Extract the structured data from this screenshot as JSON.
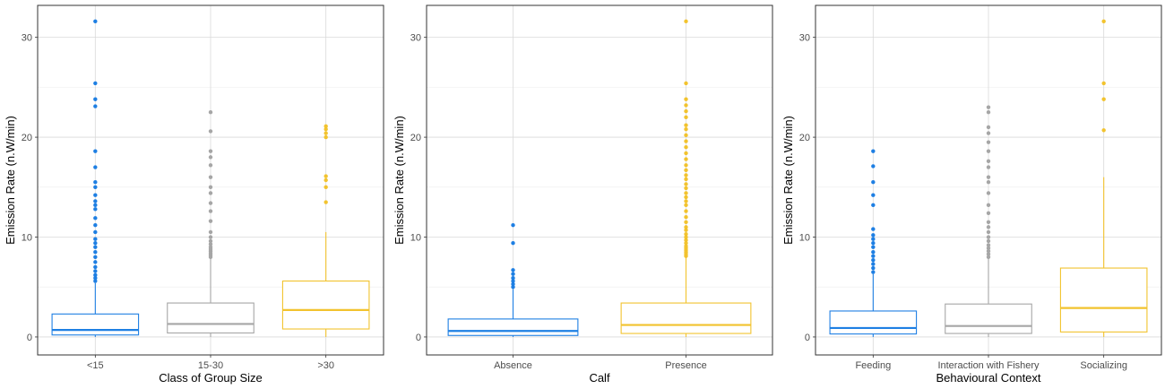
{
  "chart_data": [
    {
      "type": "box",
      "ylabel": "Emission Rate (n.W/min)",
      "xlabel": "Class of Group Size",
      "ylim": [
        -1.8,
        33.2
      ],
      "y_ticks": [
        0,
        10,
        20,
        30
      ],
      "grid": true,
      "legend": "none",
      "categories": [
        {
          "label": "<15",
          "color": "#1e7fe3",
          "q1": 0.2,
          "median": 0.7,
          "q3": 2.3,
          "whisker_low": 0,
          "whisker_high": 5.4,
          "outliers": [
            5.6,
            5.9,
            6.2,
            6.6,
            7.0,
            7.5,
            8.0,
            8.5,
            9.0,
            9.4,
            9.8,
            10.5,
            11.2,
            11.9,
            12.8,
            13.2,
            13.6,
            14.2,
            15.0,
            15.5,
            17.0,
            18.6,
            23.1,
            23.8,
            25.4,
            31.6
          ]
        },
        {
          "label": "15-30",
          "color": "#a6a6a6",
          "q1": 0.4,
          "median": 1.3,
          "q3": 3.4,
          "whisker_low": 0,
          "whisker_high": 7.8,
          "outliers": [
            8.0,
            8.2,
            8.4,
            8.6,
            8.8,
            9.0,
            9.3,
            9.6,
            10.0,
            10.5,
            11.6,
            12.6,
            13.4,
            14.4,
            15.0,
            16.0,
            17.2,
            18.0,
            18.6,
            20.6,
            22.5
          ]
        },
        {
          "label": ">30",
          "color": "#f2c32e",
          "q1": 0.8,
          "median": 2.7,
          "q3": 5.6,
          "whisker_low": 0,
          "whisker_high": 10.5,
          "outliers": [
            13.5,
            15.0,
            15.7,
            16.1,
            20.0,
            20.4,
            20.8,
            21.1
          ]
        }
      ]
    },
    {
      "type": "box",
      "ylabel": "Emission Rate (n.W/min)",
      "xlabel": "Calf",
      "ylim": [
        -1.8,
        33.2
      ],
      "y_ticks": [
        0,
        10,
        20,
        30
      ],
      "grid": true,
      "legend": "none",
      "categories": [
        {
          "label": "Absence",
          "color": "#1e7fe3",
          "q1": 0.15,
          "median": 0.6,
          "q3": 1.8,
          "whisker_low": 0,
          "whisker_high": 4.8,
          "outliers": [
            5.0,
            5.3,
            5.6,
            5.9,
            6.3,
            6.7,
            9.4,
            11.2
          ]
        },
        {
          "label": "Presence",
          "color": "#f2c32e",
          "q1": 0.35,
          "median": 1.2,
          "q3": 3.4,
          "whisker_low": 0,
          "whisker_high": 8.0,
          "outliers": [
            8.1,
            8.3,
            8.5,
            8.7,
            8.9,
            9.1,
            9.4,
            9.7,
            10.0,
            10.3,
            10.7,
            11.0,
            11.5,
            12.0,
            12.6,
            13.2,
            13.6,
            14.0,
            14.4,
            14.9,
            15.3,
            15.8,
            16.2,
            16.7,
            17.2,
            17.8,
            18.4,
            19.0,
            19.6,
            20.2,
            20.8,
            21.2,
            22.0,
            22.6,
            23.2,
            23.8,
            25.4,
            31.6
          ]
        }
      ]
    },
    {
      "type": "box",
      "ylabel": "Emission Rate (n.W/min)",
      "xlabel": "Behavioural Context",
      "ylim": [
        -1.8,
        33.2
      ],
      "y_ticks": [
        0,
        10,
        20,
        30
      ],
      "grid": true,
      "legend": "none",
      "categories": [
        {
          "label": "Feeding",
          "color": "#1e7fe3",
          "q1": 0.3,
          "median": 0.9,
          "q3": 2.6,
          "whisker_low": 0,
          "whisker_high": 6.3,
          "outliers": [
            6.5,
            6.9,
            7.3,
            7.7,
            8.1,
            8.5,
            9.0,
            9.4,
            9.8,
            10.2,
            10.8,
            13.2,
            14.2,
            15.5,
            17.1,
            18.6
          ]
        },
        {
          "label": "Interaction with Fishery",
          "color": "#a6a6a6",
          "q1": 0.35,
          "median": 1.1,
          "q3": 3.3,
          "whisker_low": 0,
          "whisker_high": 7.9,
          "outliers": [
            8.0,
            8.3,
            8.6,
            8.9,
            9.2,
            9.6,
            10.0,
            10.5,
            11.0,
            11.5,
            12.4,
            13.2,
            14.4,
            15.5,
            16.0,
            17.0,
            17.6,
            18.6,
            19.5,
            20.4,
            21.0,
            22.5,
            23.0
          ]
        },
        {
          "label": "Socializing",
          "color": "#f2c32e",
          "q1": 0.5,
          "median": 2.9,
          "q3": 6.9,
          "whisker_low": 0,
          "whisker_high": 16.0,
          "outliers": [
            20.7,
            23.8,
            25.4,
            31.6
          ]
        }
      ]
    }
  ]
}
